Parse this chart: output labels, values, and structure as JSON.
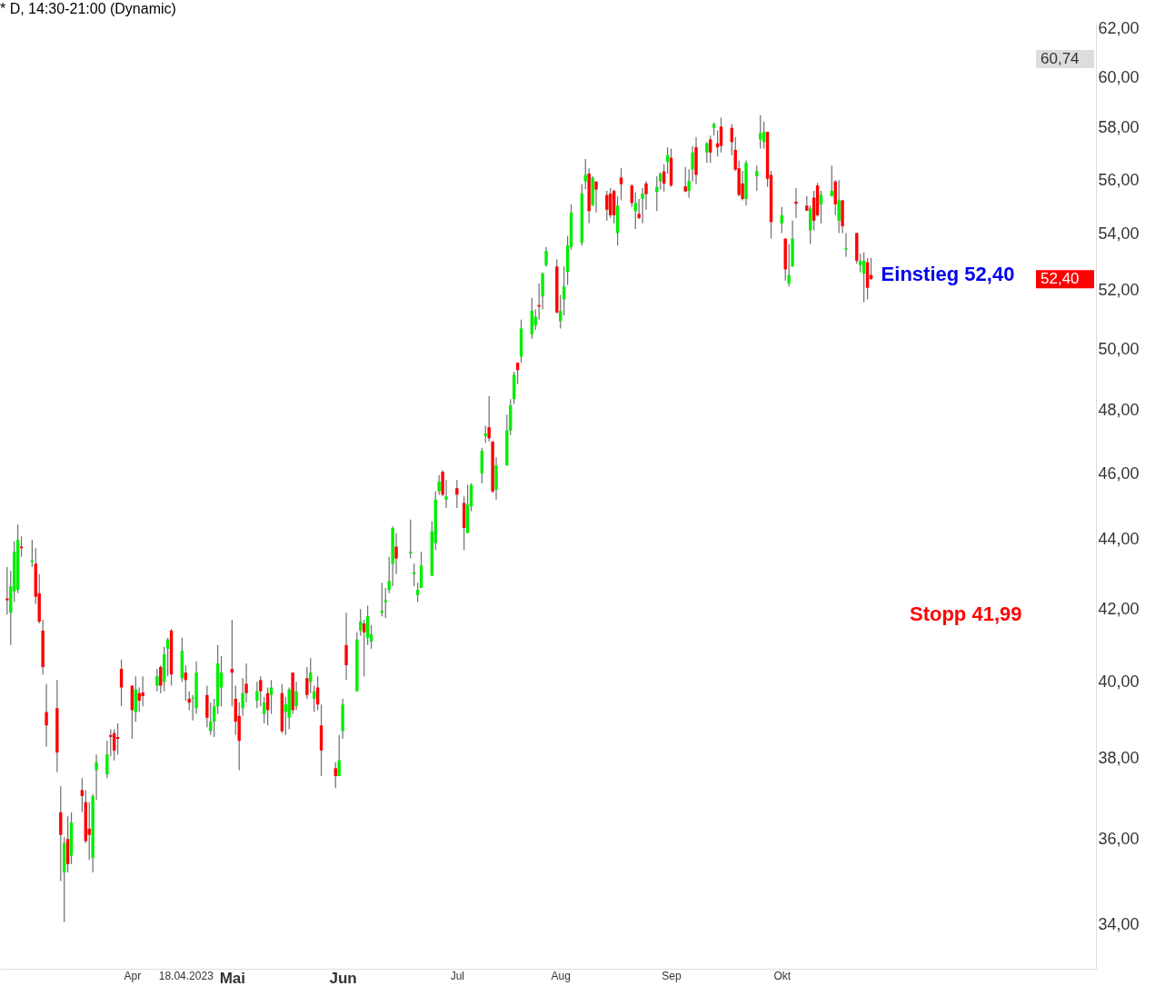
{
  "chart_data": {
    "type": "candlestick",
    "title": "* D, 14:30-21:00 (Dynamic)",
    "x": [
      "2023-02-27",
      "2023-02-28",
      "2023-03-01",
      "2023-03-02",
      "2023-03-03",
      "2023-03-06",
      "2023-03-07",
      "2023-03-08",
      "2023-03-09",
      "2023-03-10",
      "2023-03-13",
      "2023-03-14",
      "2023-03-15",
      "2023-03-16",
      "2023-03-17",
      "2023-03-20",
      "2023-03-21",
      "2023-03-22",
      "2023-03-23",
      "2023-03-24",
      "2023-03-27",
      "2023-03-28",
      "2023-03-29",
      "2023-03-30",
      "2023-03-31",
      "2023-04-03",
      "2023-04-04",
      "2023-04-05",
      "2023-04-06",
      "2023-04-10",
      "2023-04-11",
      "2023-04-12",
      "2023-04-13",
      "2023-04-14",
      "2023-04-17",
      "2023-04-18",
      "2023-04-19",
      "2023-04-20",
      "2023-04-21",
      "2023-04-24",
      "2023-04-25",
      "2023-04-26",
      "2023-04-27",
      "2023-04-28",
      "2023-05-01",
      "2023-05-02",
      "2023-05-03",
      "2023-05-04",
      "2023-05-05",
      "2023-05-08",
      "2023-05-09",
      "2023-05-10",
      "2023-05-11",
      "2023-05-12",
      "2023-05-15",
      "2023-05-16",
      "2023-05-17",
      "2023-05-18",
      "2023-05-19",
      "2023-05-22",
      "2023-05-23",
      "2023-05-24",
      "2023-05-25",
      "2023-05-26",
      "2023-05-30",
      "2023-05-31",
      "2023-06-01",
      "2023-06-02",
      "2023-06-05",
      "2023-06-06",
      "2023-06-07",
      "2023-06-08",
      "2023-06-09",
      "2023-06-12",
      "2023-06-13",
      "2023-06-14",
      "2023-06-15",
      "2023-06-16",
      "2023-06-20",
      "2023-06-21",
      "2023-06-22",
      "2023-06-23",
      "2023-06-26",
      "2023-06-27",
      "2023-06-28",
      "2023-06-29",
      "2023-06-30",
      "2023-07-03",
      "2023-07-05",
      "2023-07-06",
      "2023-07-07",
      "2023-07-10",
      "2023-07-11",
      "2023-07-12",
      "2023-07-13",
      "2023-07-14",
      "2023-07-17",
      "2023-07-18",
      "2023-07-19",
      "2023-07-20",
      "2023-07-21",
      "2023-07-24",
      "2023-07-25",
      "2023-07-26",
      "2023-07-27",
      "2023-07-28",
      "2023-07-31",
      "2023-08-01",
      "2023-08-02",
      "2023-08-03",
      "2023-08-04",
      "2023-08-07",
      "2023-08-08",
      "2023-08-09",
      "2023-08-10",
      "2023-08-11",
      "2023-08-14",
      "2023-08-15",
      "2023-08-16",
      "2023-08-17",
      "2023-08-18",
      "2023-08-21",
      "2023-08-22",
      "2023-08-23",
      "2023-08-24",
      "2023-08-25",
      "2023-08-28",
      "2023-08-29",
      "2023-08-30",
      "2023-08-31",
      "2023-09-01",
      "2023-09-05",
      "2023-09-06",
      "2023-09-07",
      "2023-09-08",
      "2023-09-11",
      "2023-09-12",
      "2023-09-13",
      "2023-09-14",
      "2023-09-15",
      "2023-09-18",
      "2023-09-19",
      "2023-09-20",
      "2023-09-21",
      "2023-09-22",
      "2023-09-25",
      "2023-09-26",
      "2023-09-27",
      "2023-09-28",
      "2023-09-29",
      "2023-10-02",
      "2023-10-03",
      "2023-10-04",
      "2023-10-05",
      "2023-10-06",
      "2023-10-09",
      "2023-10-10",
      "2023-10-11",
      "2023-10-12",
      "2023-10-13",
      "2023-10-16",
      "2023-10-17",
      "2023-10-18",
      "2023-10-19",
      "2023-10-20",
      "2023-10-23",
      "2023-10-24",
      "2023-10-25",
      "2023-10-26",
      "2023-10-27"
    ],
    "ohlc": [
      [
        42.3,
        43.2,
        41.85,
        42.25
      ],
      [
        41.9,
        43.1,
        41.0,
        42.65
      ],
      [
        42.5,
        43.95,
        42.2,
        43.65
      ],
      [
        42.55,
        44.45,
        42.45,
        44.0
      ],
      [
        43.8,
        44.1,
        43.5,
        43.75
      ],
      [
        43.35,
        44.0,
        43.2,
        43.4
      ],
      [
        43.3,
        43.75,
        42.15,
        42.35
      ],
      [
        42.45,
        43.0,
        41.6,
        41.65
      ],
      [
        41.4,
        41.7,
        40.2,
        40.4
      ],
      [
        39.2,
        39.95,
        38.3,
        38.85
      ],
      [
        39.3,
        40.05,
        37.65,
        38.15
      ],
      [
        36.65,
        37.3,
        35.0,
        36.1
      ],
      [
        35.2,
        36.05,
        34.05,
        35.9
      ],
      [
        36.0,
        36.55,
        35.2,
        35.4
      ],
      [
        35.6,
        36.65,
        35.4,
        36.4
      ],
      [
        37.2,
        37.5,
        36.65,
        37.05
      ],
      [
        36.9,
        37.2,
        35.9,
        35.95
      ],
      [
        36.25,
        36.9,
        35.5,
        36.1
      ],
      [
        35.55,
        37.1,
        35.2,
        37.05
      ],
      [
        37.7,
        38.1,
        36.95,
        37.9
      ],
      [
        37.6,
        38.45,
        37.5,
        38.1
      ],
      [
        38.6,
        38.75,
        38.05,
        38.55
      ],
      [
        38.65,
        38.75,
        37.95,
        38.2
      ],
      [
        38.55,
        38.9,
        38.1,
        38.5
      ],
      [
        40.35,
        40.6,
        39.35,
        39.85
      ],
      [
        39.9,
        39.9,
        38.5,
        39.25
      ],
      [
        39.2,
        40.15,
        38.95,
        39.8
      ],
      [
        39.7,
        39.85,
        39.2,
        39.5
      ],
      [
        39.72,
        40.15,
        39.35,
        39.62
      ],
      [
        39.9,
        40.35,
        39.75,
        40.15
      ],
      [
        40.4,
        40.45,
        39.7,
        39.9
      ],
      [
        40.0,
        40.95,
        39.75,
        40.75
      ],
      [
        40.9,
        41.2,
        40.15,
        41.15
      ],
      [
        41.4,
        41.45,
        39.9,
        40.2
      ],
      [
        40.1,
        41.2,
        40.0,
        40.85
      ],
      [
        40.25,
        40.45,
        39.5,
        40.05
      ],
      [
        39.55,
        39.75,
        39.25,
        39.45
      ],
      [
        39.55,
        39.65,
        38.98,
        39.58
      ],
      [
        39.3,
        40.55,
        39.15,
        40.25
      ],
      [
        39.65,
        39.9,
        38.8,
        39.05
      ],
      [
        38.7,
        39.45,
        38.6,
        38.95
      ],
      [
        38.95,
        39.55,
        38.55,
        39.35
      ],
      [
        39.35,
        41.0,
        39.15,
        40.5
      ],
      [
        39.85,
        40.7,
        39.35,
        40.25
      ],
      [
        40.35,
        41.7,
        39.35,
        40.25
      ],
      [
        39.55,
        39.9,
        38.6,
        38.95
      ],
      [
        39.1,
        39.45,
        37.7,
        38.45
      ],
      [
        39.3,
        40.1,
        39.1,
        39.7
      ],
      [
        39.95,
        40.5,
        39.45,
        39.7
      ],
      [
        39.5,
        40.0,
        39.3,
        39.75
      ],
      [
        40.05,
        40.15,
        39.35,
        39.75
      ],
      [
        39.15,
        39.6,
        38.9,
        39.45
      ],
      [
        39.7,
        39.85,
        38.85,
        39.25
      ],
      [
        39.65,
        40.05,
        39.15,
        39.85
      ],
      [
        39.7,
        39.95,
        38.65,
        38.7
      ],
      [
        39.2,
        39.6,
        38.6,
        39.4
      ],
      [
        39.05,
        39.85,
        38.75,
        39.8
      ],
      [
        40.25,
        40.25,
        39.15,
        39.25
      ],
      [
        39.35,
        40.0,
        39.25,
        39.75
      ],
      [
        40.1,
        40.4,
        39.55,
        39.65
      ],
      [
        40.0,
        40.65,
        39.7,
        40.25
      ],
      [
        39.55,
        39.9,
        39.2,
        39.75
      ],
      [
        39.85,
        40.15,
        39.25,
        39.4
      ],
      [
        38.85,
        39.4,
        37.55,
        38.2
      ],
      [
        37.75,
        37.9,
        37.25,
        37.55
      ],
      [
        37.55,
        38.6,
        37.55,
        37.95
      ],
      [
        38.7,
        39.55,
        38.5,
        39.4
      ],
      [
        41.0,
        41.9,
        40.05,
        40.45
      ],
      [
        39.75,
        41.35,
        39.75,
        41.15
      ],
      [
        41.4,
        42.0,
        41.25,
        41.65
      ],
      [
        41.6,
        41.7,
        40.15,
        41.35
      ],
      [
        41.2,
        42.1,
        41.0,
        41.8
      ],
      [
        41.1,
        41.55,
        40.9,
        41.3
      ],
      [
        41.9,
        42.75,
        41.8,
        41.95
      ],
      [
        42.2,
        42.6,
        41.75,
        42.25
      ],
      [
        42.55,
        43.5,
        42.45,
        42.8
      ],
      [
        43.3,
        44.4,
        42.65,
        44.35
      ],
      [
        43.8,
        44.2,
        43.0,
        43.45
      ],
      [
        43.6,
        44.6,
        43.45,
        43.65
      ],
      [
        43.0,
        43.3,
        42.65,
        43.05
      ],
      [
        42.4,
        42.75,
        42.2,
        42.55
      ],
      [
        42.6,
        43.65,
        42.6,
        43.25
      ],
      [
        42.95,
        44.55,
        42.95,
        44.25
      ],
      [
        43.9,
        45.45,
        43.7,
        45.2
      ],
      [
        45.45,
        45.95,
        45.35,
        45.75
      ],
      [
        46.05,
        46.1,
        45.3,
        45.35
      ],
      [
        45.2,
        45.8,
        44.95,
        45.3
      ],
      [
        45.55,
        45.8,
        44.95,
        45.35
      ],
      [
        45.1,
        45.3,
        43.7,
        44.35
      ],
      [
        44.2,
        45.65,
        44.2,
        45.05
      ],
      [
        45.0,
        45.7,
        44.85,
        45.65
      ],
      [
        46.0,
        46.8,
        45.7,
        46.7
      ],
      [
        47.17,
        47.5,
        46.95,
        47.25
      ],
      [
        47.45,
        48.45,
        47.0,
        47.1
      ],
      [
        47.0,
        47.0,
        45.4,
        45.45
      ],
      [
        45.5,
        46.5,
        45.2,
        46.25
      ],
      [
        46.25,
        47.85,
        46.25,
        47.35
      ],
      [
        47.35,
        48.35,
        47.2,
        48.15
      ],
      [
        48.35,
        49.25,
        48.2,
        49.15
      ],
      [
        49.55,
        49.55,
        48.85,
        49.3
      ],
      [
        49.75,
        51.0,
        49.55,
        50.7
      ],
      [
        50.5,
        51.75,
        50.35,
        51.3
      ],
      [
        50.8,
        51.35,
        50.65,
        51.1
      ],
      [
        51.5,
        52.25,
        51.0,
        51.45
      ],
      [
        51.8,
        52.65,
        51.35,
        52.6
      ],
      [
        52.9,
        53.55,
        52.85,
        53.4
      ],
      [
        52.85,
        53.1,
        51.2,
        51.25
      ],
      [
        50.95,
        51.85,
        50.7,
        51.3
      ],
      [
        51.7,
        52.85,
        51.15,
        52.15
      ],
      [
        52.65,
        53.95,
        52.2,
        53.6
      ],
      [
        53.55,
        55.1,
        53.45,
        54.8
      ],
      [
        53.7,
        55.85,
        53.6,
        55.5
      ],
      [
        55.95,
        56.8,
        55.65,
        56.2
      ],
      [
        56.25,
        56.45,
        54.4,
        54.85
      ],
      [
        55.05,
        56.15,
        55.05,
        56.1
      ],
      [
        55.95,
        55.95,
        54.8,
        55.65
      ],
      [
        55.45,
        55.6,
        54.5,
        54.9
      ],
      [
        55.5,
        55.7,
        54.6,
        54.7
      ],
      [
        55.6,
        55.65,
        54.4,
        54.7
      ],
      [
        54.05,
        55.4,
        53.6,
        55.05
      ],
      [
        56.1,
        56.45,
        55.25,
        55.85
      ],
      [
        55.8,
        55.85,
        55.0,
        55.15
      ],
      [
        54.85,
        55.55,
        54.2,
        55.15
      ],
      [
        54.75,
        55.3,
        54.55,
        54.6
      ],
      [
        55.3,
        55.7,
        54.4,
        55.5
      ],
      [
        55.88,
        55.97,
        54.9,
        55.48
      ],
      [
        55.55,
        56.15,
        54.85,
        55.75
      ],
      [
        55.95,
        56.3,
        55.65,
        56.25
      ],
      [
        56.33,
        56.6,
        55.58,
        55.87
      ],
      [
        56.7,
        57.25,
        56.25,
        56.95
      ],
      [
        56.85,
        57.2,
        55.75,
        55.8
      ],
      [
        55.77,
        56.5,
        55.55,
        55.58
      ],
      [
        55.6,
        56.4,
        55.35,
        55.97
      ],
      [
        56.4,
        57.3,
        55.95,
        57.05
      ],
      [
        57.25,
        57.65,
        55.85,
        56.2
      ],
      [
        57.05,
        57.45,
        56.65,
        57.4
      ],
      [
        57.55,
        57.7,
        56.65,
        57.05
      ],
      [
        58.0,
        58.2,
        57.7,
        58.15
      ],
      [
        57.4,
        57.9,
        56.9,
        57.25
      ],
      [
        58.05,
        58.4,
        57.05,
        57.3
      ],
      [
        58.0,
        58.15,
        56.95,
        57.45
      ],
      [
        57.15,
        57.65,
        56.35,
        56.4
      ],
      [
        56.45,
        56.75,
        55.4,
        55.45
      ],
      [
        55.88,
        56.35,
        55.25,
        55.3
      ],
      [
        55.3,
        56.75,
        55.05,
        56.65
      ],
      [
        56.15,
        56.55,
        55.6,
        56.35
      ],
      [
        57.55,
        58.5,
        57.2,
        57.8
      ],
      [
        57.45,
        58.25,
        57.2,
        57.85
      ],
      [
        57.85,
        57.85,
        55.75,
        56.05
      ],
      [
        56.2,
        56.35,
        53.85,
        54.45
      ],
      [
        54.4,
        55.0,
        54.05,
        54.7
      ],
      [
        53.85,
        53.85,
        52.35,
        52.75
      ],
      [
        52.25,
        53.65,
        52.15,
        52.55
      ],
      [
        52.85,
        54.5,
        52.85,
        53.85
      ],
      [
        55.2,
        55.7,
        54.6,
        55.12
      ],
      [
        55.05,
        55.4,
        54.85,
        54.87
      ],
      [
        54.15,
        55.05,
        53.65,
        54.95
      ],
      [
        55.35,
        55.6,
        54.15,
        54.5
      ],
      [
        55.8,
        55.9,
        54.65,
        54.7
      ],
      [
        55.1,
        55.6,
        54.4,
        55.45
      ],
      [
        55.4,
        56.55,
        55.4,
        55.6
      ],
      [
        55.95,
        56.0,
        54.7,
        55.1
      ],
      [
        54.5,
        56.0,
        54.05,
        55.25
      ],
      [
        55.25,
        55.25,
        54.05,
        54.3
      ],
      [
        53.45,
        54.05,
        53.2,
        53.5
      ],
      [
        54.05,
        54.05,
        52.95,
        53.05
      ],
      [
        52.9,
        53.3,
        52.65,
        53.05
      ],
      [
        52.6,
        53.35,
        51.6,
        53.05
      ],
      [
        53.0,
        53.15,
        51.7,
        52.1
      ],
      [
        52.55,
        53.15,
        52.4,
        52.4
      ]
    ],
    "log": true,
    "ylim": [
      33,
      62.2
    ],
    "yticks": [
      {
        "value": 34,
        "label": "34,00"
      },
      {
        "value": 36,
        "label": "36,00"
      },
      {
        "value": 38,
        "label": "38,00"
      },
      {
        "value": 40,
        "label": "40,00"
      },
      {
        "value": 42,
        "label": "42,00"
      },
      {
        "value": 44,
        "label": "44,00"
      },
      {
        "value": 46,
        "label": "46,00"
      },
      {
        "value": 48,
        "label": "48,00"
      },
      {
        "value": 50,
        "label": "50,00"
      },
      {
        "value": 52,
        "label": "52,00"
      },
      {
        "value": 54,
        "label": "54,00"
      },
      {
        "value": 56,
        "label": "56,00"
      },
      {
        "value": 58,
        "label": "58,00"
      },
      {
        "value": 60,
        "label": "60,00"
      },
      {
        "value": 62,
        "label": "62,00"
      }
    ],
    "xticks": [
      {
        "value": "2023-04-03",
        "label": "Apr"
      },
      {
        "value": "2023-04-18",
        "label": "18.04.2023"
      },
      {
        "value": "2023-05-01",
        "label": "Mai"
      },
      {
        "value": "2023-06-01",
        "label": "Jun"
      },
      {
        "value": "2023-07-03",
        "label": "Jul"
      },
      {
        "value": "2023-08-01",
        "label": "Aug"
      },
      {
        "value": "2023-09-01",
        "label": "Sep"
      },
      {
        "value": "2023-10-02",
        "label": "Okt"
      }
    ],
    "ref_lines": [
      {
        "axis": "y",
        "value": 60.74,
        "label": "60,74",
        "color": "#dddddd"
      },
      {
        "axis": "y",
        "value": 52.4,
        "label": "52,40",
        "color": "#ff0000"
      }
    ],
    "annotations": [
      "Einstieg 52,40",
      "Stopp 41,99"
    ],
    "xlim": [
      "2023-02-25",
      "2023-12-29"
    ],
    "grid": false
  }
}
